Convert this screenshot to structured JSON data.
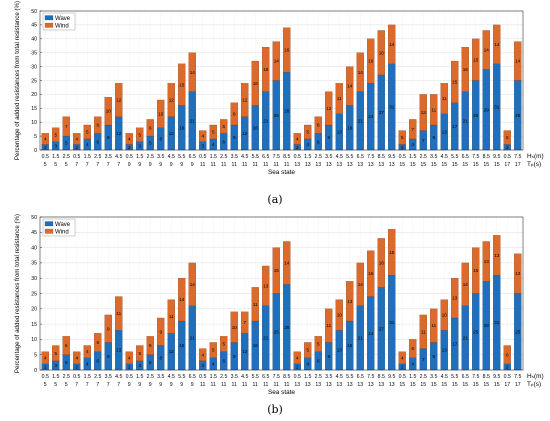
{
  "chart_data": [
    {
      "panel": "a",
      "type": "bar",
      "stacked": true,
      "caption": "(a)",
      "ylabel": "Percentage of added resistances from total resistance (%)",
      "xlabel": "Sea state",
      "hs_label": "Hₛ(m)",
      "tp_label": "Tₚ(s)",
      "ylim": [
        0,
        50
      ],
      "yticks": [
        0,
        5,
        10,
        15,
        20,
        25,
        30,
        35,
        40,
        45,
        50
      ],
      "grid": true,
      "legend_position": "top-left",
      "hs": [
        "0.5",
        "1.5",
        "2.5",
        "0.5",
        "1.5",
        "2.5",
        "3.5",
        "4.5",
        "0.5",
        "1.5",
        "2.5",
        "3.5",
        "4.5",
        "5.5",
        "6.5",
        "0.5",
        "1.5",
        "2.5",
        "3.5",
        "4.5",
        "5.5",
        "6.5",
        "7.5",
        "8.5",
        "0.5",
        "1.5",
        "2.5",
        "3.5",
        "4.5",
        "5.5",
        "6.5",
        "7.5",
        "8.5",
        "9.5",
        "0.5",
        "1.5",
        "2.5",
        "3.5",
        "4.5",
        "5.5",
        "6.5",
        "7.5",
        "8.5",
        "9.5",
        "0.5",
        "7.5"
      ],
      "tp": [
        "5",
        "5",
        "5",
        "7",
        "7",
        "7",
        "7",
        "7",
        "9",
        "9",
        "9",
        "9",
        "9",
        "9",
        "9",
        "11",
        "11",
        "11",
        "11",
        "11",
        "11",
        "11",
        "11",
        "11",
        "13",
        "13",
        "13",
        "13",
        "13",
        "13",
        "13",
        "13",
        "13",
        "13",
        "15",
        "15",
        "15",
        "15",
        "15",
        "15",
        "15",
        "15",
        "15",
        "15",
        "17",
        "17"
      ],
      "series": [
        {
          "name": "Wave",
          "color": "#1f6fbd",
          "values": [
            2,
            3,
            5,
            2,
            4,
            6,
            9,
            12,
            2,
            3,
            5,
            8,
            12,
            16,
            21,
            3,
            4,
            6,
            9,
            12,
            16,
            21,
            25,
            28,
            2,
            4,
            6,
            9,
            13,
            16,
            21,
            24,
            27,
            31,
            2,
            4,
            7,
            9,
            13,
            17,
            21,
            25,
            29,
            31,
            2,
            25
          ]
        },
        {
          "name": "Wind",
          "color": "#dc6a2b",
          "values": [
            4,
            5,
            7,
            4,
            5,
            6,
            10,
            12,
            4,
            5,
            6,
            10,
            12,
            15,
            14,
            4,
            5,
            5,
            8,
            12,
            16,
            16,
            14,
            16,
            4,
            5,
            6,
            12,
            11,
            14,
            14,
            16,
            16,
            14,
            5,
            7,
            13,
            11,
            11,
            15,
            16,
            15,
            14,
            14,
            5,
            14
          ]
        }
      ]
    },
    {
      "panel": "b",
      "type": "bar",
      "stacked": true,
      "caption": "(b)",
      "ylabel": "Percentage of added resistances from total resistance (%)",
      "xlabel": "Sea state",
      "hs_label": "Hₛ(m)",
      "tp_label": "Tₚ(s)",
      "ylim": [
        0,
        50
      ],
      "yticks": [
        0,
        5,
        10,
        15,
        20,
        25,
        30,
        35,
        40,
        45,
        50
      ],
      "grid": true,
      "legend_position": "top-left",
      "hs": [
        "0.5",
        "1.5",
        "2.5",
        "0.5",
        "1.5",
        "2.5",
        "3.5",
        "4.5",
        "0.5",
        "1.5",
        "2.5",
        "3.5",
        "4.5",
        "5.5",
        "6.5",
        "0.5",
        "1.5",
        "2.5",
        "3.5",
        "4.5",
        "5.5",
        "6.5",
        "7.5",
        "8.5",
        "0.5",
        "1.5",
        "2.5",
        "3.5",
        "4.5",
        "5.5",
        "6.5",
        "7.5",
        "8.5",
        "9.5",
        "0.5",
        "1.5",
        "2.5",
        "3.5",
        "4.5",
        "5.5",
        "6.5",
        "7.5",
        "8.5",
        "9.5",
        "0.5",
        "7.5"
      ],
      "tp": [
        "5",
        "5",
        "5",
        "7",
        "7",
        "7",
        "7",
        "7",
        "9",
        "9",
        "9",
        "9",
        "9",
        "9",
        "9",
        "11",
        "11",
        "11",
        "11",
        "11",
        "11",
        "11",
        "11",
        "11",
        "13",
        "13",
        "13",
        "13",
        "13",
        "13",
        "13",
        "13",
        "13",
        "13",
        "15",
        "15",
        "15",
        "15",
        "15",
        "15",
        "15",
        "15",
        "15",
        "15",
        "17",
        "17"
      ],
      "series": [
        {
          "name": "Wave",
          "color": "#1f6fbd",
          "values": [
            2,
            3,
            5,
            2,
            4,
            6,
            9,
            13,
            2,
            3,
            5,
            8,
            12,
            16,
            21,
            3,
            4,
            6,
            9,
            12,
            16,
            21,
            25,
            28,
            2,
            4,
            6,
            9,
            13,
            16,
            21,
            24,
            27,
            31,
            2,
            4,
            7,
            9,
            13,
            17,
            21,
            25,
            29,
            31,
            2,
            25
          ]
        },
        {
          "name": "Wind",
          "color": "#dc6a2b",
          "values": [
            4,
            5,
            6,
            4,
            4,
            6,
            9,
            11,
            4,
            5,
            6,
            9,
            11,
            14,
            14,
            4,
            5,
            5,
            10,
            7,
            11,
            13,
            15,
            14,
            4,
            5,
            5,
            11,
            10,
            13,
            14,
            15,
            16,
            15,
            4,
            6,
            11,
            11,
            10,
            13,
            14,
            15,
            13,
            13,
            6,
            13
          ]
        }
      ]
    }
  ]
}
